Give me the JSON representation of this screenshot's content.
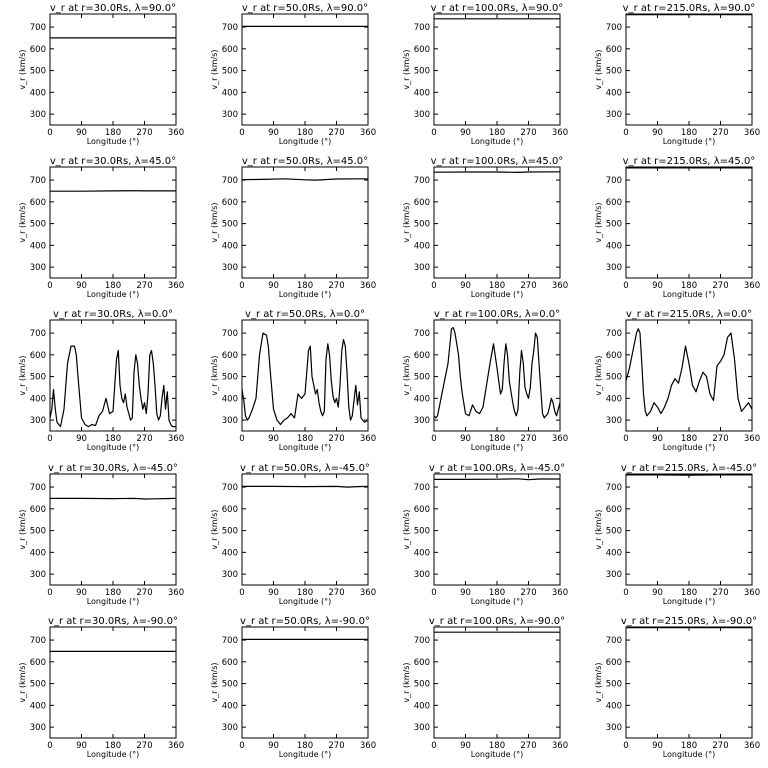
{
  "figure": {
    "layout": "5 rows x 4 columns grid of line plots"
  },
  "chart_data": [
    {
      "type": "line",
      "title": "v_r at r=30.0Rs, λ=90.0°",
      "xlabel": "Longitude (°)",
      "ylabel": "v_r (km/s)",
      "xlim": [
        0,
        360
      ],
      "ylim": [
        250,
        760
      ],
      "xticks": [
        0,
        90,
        180,
        270,
        360
      ],
      "yticks": [
        300,
        400,
        500,
        600,
        700
      ],
      "series": [
        {
          "x": [
            0,
            360
          ],
          "y": [
            650,
            650
          ]
        }
      ]
    },
    {
      "type": "line",
      "title": "v_r at r=50.0Rs, λ=90.0°",
      "xlabel": "Longitude (°)",
      "ylabel": "v_r (km/s)",
      "xlim": [
        0,
        360
      ],
      "ylim": [
        250,
        760
      ],
      "xticks": [
        0,
        90,
        180,
        270,
        360
      ],
      "yticks": [
        300,
        400,
        500,
        600,
        700
      ],
      "series": [
        {
          "x": [
            0,
            360
          ],
          "y": [
            703,
            703
          ]
        }
      ]
    },
    {
      "type": "line",
      "title": "v_r at r=100.0Rs, λ=90.0°",
      "xlabel": "Longitude (°)",
      "ylabel": "v_r (km/s)",
      "xlim": [
        0,
        360
      ],
      "ylim": [
        250,
        760
      ],
      "xticks": [
        0,
        90,
        180,
        270,
        360
      ],
      "yticks": [
        300,
        400,
        500,
        600,
        700
      ],
      "series": [
        {
          "x": [
            0,
            360
          ],
          "y": [
            738,
            738
          ]
        }
      ]
    },
    {
      "type": "line",
      "title": "v_r at r=215.0Rs, λ=90.0°",
      "xlabel": "Longitude (°)",
      "ylabel": "v_r (km/s)",
      "xlim": [
        0,
        360
      ],
      "ylim": [
        250,
        760
      ],
      "xticks": [
        0,
        90,
        180,
        270,
        360
      ],
      "yticks": [
        300,
        400,
        500,
        600,
        700
      ],
      "series": [
        {
          "x": [
            0,
            360
          ],
          "y": [
            757,
            757
          ]
        }
      ]
    },
    {
      "type": "line",
      "title": "v_r at r=30.0Rs, λ=45.0°",
      "xlabel": "Longitude (°)",
      "ylabel": "v_r (km/s)",
      "xlim": [
        0,
        360
      ],
      "ylim": [
        250,
        760
      ],
      "xticks": [
        0,
        90,
        180,
        270,
        360
      ],
      "yticks": [
        300,
        400,
        500,
        600,
        700
      ],
      "series": [
        {
          "x": [
            0,
            90,
            180,
            240,
            270,
            360
          ],
          "y": [
            649,
            649,
            650,
            651,
            650,
            650
          ]
        }
      ]
    },
    {
      "type": "line",
      "title": "v_r at r=50.0Rs, λ=45.0°",
      "xlabel": "Longitude (°)",
      "ylabel": "v_r (km/s)",
      "xlim": [
        0,
        360
      ],
      "ylim": [
        250,
        760
      ],
      "xticks": [
        0,
        90,
        180,
        270,
        360
      ],
      "yticks": [
        300,
        400,
        500,
        600,
        700
      ],
      "series": [
        {
          "x": [
            0,
            60,
            120,
            180,
            210,
            270,
            360
          ],
          "y": [
            702,
            703,
            706,
            701,
            700,
            705,
            706
          ]
        }
      ]
    },
    {
      "type": "line",
      "title": "v_r at r=100.0Rs, λ=45.0°",
      "xlabel": "Longitude (°)",
      "ylabel": "v_r (km/s)",
      "xlim": [
        0,
        360
      ],
      "ylim": [
        250,
        760
      ],
      "xticks": [
        0,
        90,
        180,
        270,
        360
      ],
      "yticks": [
        300,
        400,
        500,
        600,
        700
      ],
      "series": [
        {
          "x": [
            0,
            90,
            180,
            240,
            270,
            360
          ],
          "y": [
            736,
            737,
            737,
            735,
            737,
            738
          ]
        }
      ]
    },
    {
      "type": "line",
      "title": "v_r at r=215.0Rs, λ=45.0°",
      "xlabel": "Longitude (°)",
      "ylabel": "v_r (km/s)",
      "xlim": [
        0,
        360
      ],
      "ylim": [
        250,
        760
      ],
      "xticks": [
        0,
        90,
        180,
        270,
        360
      ],
      "yticks": [
        300,
        400,
        500,
        600,
        700
      ],
      "series": [
        {
          "x": [
            0,
            360
          ],
          "y": [
            756,
            756
          ]
        }
      ]
    },
    {
      "type": "line",
      "title": "v_r at r=30.0Rs, λ=0.0°",
      "xlabel": "Longitude (°)",
      "ylabel": "v_r (km/s)",
      "xlim": [
        0,
        360
      ],
      "ylim": [
        250,
        760
      ],
      "xticks": [
        0,
        90,
        180,
        270,
        360
      ],
      "yticks": [
        300,
        400,
        500,
        600,
        700
      ],
      "series": [
        {
          "x": [
            0,
            5,
            10,
            15,
            20,
            30,
            40,
            50,
            60,
            70,
            75,
            80,
            90,
            100,
            110,
            120,
            130,
            140,
            150,
            160,
            170,
            180,
            190,
            195,
            200,
            205,
            210,
            215,
            220,
            225,
            230,
            235,
            240,
            245,
            250,
            255,
            260,
            265,
            270,
            275,
            280,
            285,
            290,
            295,
            300,
            305,
            310,
            315,
            320,
            325,
            330,
            335,
            340,
            345,
            350,
            360
          ],
          "y": [
            310,
            350,
            440,
            350,
            290,
            270,
            350,
            560,
            640,
            640,
            600,
            500,
            310,
            280,
            270,
            280,
            275,
            320,
            340,
            400,
            330,
            340,
            580,
            620,
            460,
            400,
            380,
            420,
            360,
            330,
            300,
            310,
            520,
            600,
            560,
            460,
            400,
            350,
            380,
            330,
            420,
            600,
            620,
            560,
            460,
            330,
            300,
            320,
            400,
            460,
            350,
            430,
            300,
            280,
            270,
            270
          ]
        }
      ]
    },
    {
      "type": "line",
      "title": "v_r at r=50.0Rs, λ=0.0°",
      "xlabel": "Longitude (°)",
      "ylabel": "v_r (km/s)",
      "xlim": [
        0,
        360
      ],
      "ylim": [
        250,
        760
      ],
      "xticks": [
        0,
        90,
        180,
        270,
        360
      ],
      "yticks": [
        300,
        400,
        500,
        600,
        700
      ],
      "series": [
        {
          "x": [
            0,
            5,
            10,
            15,
            20,
            30,
            40,
            50,
            60,
            70,
            75,
            80,
            90,
            100,
            110,
            120,
            130,
            140,
            150,
            160,
            170,
            180,
            190,
            195,
            200,
            205,
            210,
            215,
            220,
            225,
            230,
            235,
            240,
            245,
            250,
            255,
            260,
            265,
            270,
            275,
            280,
            285,
            290,
            295,
            300,
            305,
            310,
            315,
            320,
            325,
            330,
            335,
            340,
            345,
            350,
            360
          ],
          "y": [
            440,
            390,
            320,
            300,
            310,
            350,
            400,
            600,
            700,
            690,
            640,
            540,
            350,
            300,
            280,
            300,
            310,
            330,
            310,
            420,
            400,
            420,
            620,
            640,
            500,
            460,
            420,
            440,
            380,
            340,
            320,
            340,
            580,
            650,
            600,
            480,
            410,
            380,
            400,
            360,
            460,
            620,
            670,
            640,
            520,
            360,
            300,
            320,
            390,
            460,
            370,
            430,
            310,
            300,
            290,
            300
          ]
        }
      ]
    },
    {
      "type": "line",
      "title": "v_r at r=100.0Rs, λ=0.0°",
      "xlabel": "Longitude (°)",
      "ylabel": "v_r (km/s)",
      "xlim": [
        0,
        360
      ],
      "ylim": [
        250,
        760
      ],
      "xticks": [
        0,
        90,
        180,
        270,
        360
      ],
      "yticks": [
        300,
        400,
        500,
        600,
        700
      ],
      "series": [
        {
          "x": [
            0,
            5,
            10,
            15,
            20,
            30,
            40,
            50,
            55,
            60,
            70,
            75,
            80,
            90,
            100,
            110,
            120,
            130,
            140,
            150,
            160,
            170,
            180,
            190,
            195,
            200,
            205,
            210,
            215,
            220,
            225,
            230,
            235,
            240,
            245,
            250,
            255,
            260,
            265,
            270,
            275,
            280,
            285,
            290,
            295,
            300,
            305,
            310,
            315,
            320,
            325,
            330,
            335,
            340,
            345,
            350,
            360
          ],
          "y": [
            320,
            310,
            320,
            360,
            400,
            480,
            560,
            720,
            725,
            700,
            600,
            500,
            430,
            330,
            320,
            370,
            340,
            330,
            360,
            460,
            560,
            650,
            540,
            420,
            440,
            560,
            650,
            600,
            480,
            430,
            380,
            340,
            320,
            350,
            520,
            620,
            560,
            450,
            420,
            400,
            450,
            560,
            620,
            700,
            680,
            560,
            440,
            330,
            310,
            320,
            330,
            360,
            400,
            380,
            340,
            320,
            380
          ]
        }
      ]
    },
    {
      "type": "line",
      "title": "v_r at r=215.0Rs, λ=0.0°",
      "xlabel": "Longitude (°)",
      "ylabel": "v_r (km/s)",
      "xlim": [
        0,
        360
      ],
      "ylim": [
        250,
        760
      ],
      "xticks": [
        0,
        90,
        180,
        270,
        360
      ],
      "yticks": [
        300,
        400,
        500,
        600,
        700
      ],
      "series": [
        {
          "x": [
            0,
            10,
            20,
            30,
            35,
            40,
            45,
            50,
            55,
            60,
            70,
            80,
            90,
            100,
            110,
            120,
            130,
            140,
            150,
            160,
            170,
            180,
            190,
            200,
            210,
            220,
            230,
            240,
            250,
            260,
            270,
            280,
            290,
            300,
            310,
            320,
            330,
            340,
            350,
            360
          ],
          "y": [
            480,
            540,
            620,
            700,
            720,
            700,
            560,
            420,
            340,
            320,
            340,
            380,
            360,
            330,
            360,
            400,
            460,
            490,
            470,
            540,
            640,
            560,
            460,
            430,
            480,
            520,
            500,
            420,
            390,
            550,
            570,
            600,
            680,
            700,
            580,
            400,
            340,
            360,
            380,
            350
          ]
        }
      ]
    },
    {
      "type": "line",
      "title": "v_r at r=30.0Rs, λ=-45.0°",
      "xlabel": "Longitude (°)",
      "ylabel": "v_r (km/s)",
      "xlim": [
        0,
        360
      ],
      "ylim": [
        250,
        760
      ],
      "xticks": [
        0,
        90,
        180,
        270,
        360
      ],
      "yticks": [
        300,
        400,
        500,
        600,
        700
      ],
      "series": [
        {
          "x": [
            0,
            90,
            180,
            240,
            270,
            300,
            330,
            360
          ],
          "y": [
            648,
            648,
            647,
            648,
            645,
            646,
            647,
            648
          ]
        }
      ]
    },
    {
      "type": "line",
      "title": "v_r at r=50.0Rs, λ=-45.0°",
      "xlabel": "Longitude (°)",
      "ylabel": "v_r (km/s)",
      "xlim": [
        0,
        360
      ],
      "ylim": [
        250,
        760
      ],
      "xticks": [
        0,
        90,
        180,
        270,
        360
      ],
      "yticks": [
        300,
        400,
        500,
        600,
        700
      ],
      "series": [
        {
          "x": [
            0,
            90,
            180,
            270,
            300,
            330,
            360
          ],
          "y": [
            703,
            703,
            702,
            703,
            700,
            702,
            703
          ]
        }
      ]
    },
    {
      "type": "line",
      "title": "v_r at r=100.0Rs, λ=-45.0°",
      "xlabel": "Longitude (°)",
      "ylabel": "v_r (km/s)",
      "xlim": [
        0,
        360
      ],
      "ylim": [
        250,
        760
      ],
      "xticks": [
        0,
        90,
        180,
        270,
        360
      ],
      "yticks": [
        300,
        400,
        500,
        600,
        700
      ],
      "series": [
        {
          "x": [
            0,
            90,
            180,
            240,
            270,
            300,
            360
          ],
          "y": [
            735,
            735,
            736,
            738,
            734,
            737,
            737
          ]
        }
      ]
    },
    {
      "type": "line",
      "title": "v_r at r=215.0Rs, λ=-45.0°",
      "xlabel": "Longitude (°)",
      "ylabel": "v_r (km/s)",
      "xlim": [
        0,
        360
      ],
      "ylim": [
        250,
        760
      ],
      "xticks": [
        0,
        90,
        180,
        270,
        360
      ],
      "yticks": [
        300,
        400,
        500,
        600,
        700
      ],
      "series": [
        {
          "x": [
            0,
            90,
            180,
            270,
            360
          ],
          "y": [
            756,
            756,
            755,
            756,
            756
          ]
        }
      ]
    },
    {
      "type": "line",
      "title": "v_r at r=30.0Rs, λ=-90.0°",
      "xlabel": "Longitude (°)",
      "ylabel": "v_r (km/s)",
      "xlim": [
        0,
        360
      ],
      "ylim": [
        250,
        760
      ],
      "xticks": [
        0,
        90,
        180,
        270,
        360
      ],
      "yticks": [
        300,
        400,
        500,
        600,
        700
      ],
      "series": [
        {
          "x": [
            0,
            360
          ],
          "y": [
            648,
            648
          ]
        }
      ]
    },
    {
      "type": "line",
      "title": "v_r at r=50.0Rs, λ=-90.0°",
      "xlabel": "Longitude (°)",
      "ylabel": "v_r (km/s)",
      "xlim": [
        0,
        360
      ],
      "ylim": [
        250,
        760
      ],
      "xticks": [
        0,
        90,
        180,
        270,
        360
      ],
      "yticks": [
        300,
        400,
        500,
        600,
        700
      ],
      "series": [
        {
          "x": [
            0,
            360
          ],
          "y": [
            703,
            703
          ]
        }
      ]
    },
    {
      "type": "line",
      "title": "v_r at r=100.0Rs, λ=-90.0°",
      "xlabel": "Longitude (°)",
      "ylabel": "v_r (km/s)",
      "xlim": [
        0,
        360
      ],
      "ylim": [
        250,
        760
      ],
      "xticks": [
        0,
        90,
        180,
        270,
        360
      ],
      "yticks": [
        300,
        400,
        500,
        600,
        700
      ],
      "series": [
        {
          "x": [
            0,
            360
          ],
          "y": [
            736,
            736
          ]
        }
      ]
    },
    {
      "type": "line",
      "title": "v_r at r=215.0Rs, λ=-90.0°",
      "xlabel": "Longitude (°)",
      "ylabel": "v_r (km/s)",
      "xlim": [
        0,
        360
      ],
      "ylim": [
        250,
        760
      ],
      "xticks": [
        0,
        90,
        180,
        270,
        360
      ],
      "yticks": [
        300,
        400,
        500,
        600,
        700
      ],
      "series": [
        {
          "x": [
            0,
            360
          ],
          "y": [
            757,
            757
          ]
        }
      ]
    }
  ]
}
